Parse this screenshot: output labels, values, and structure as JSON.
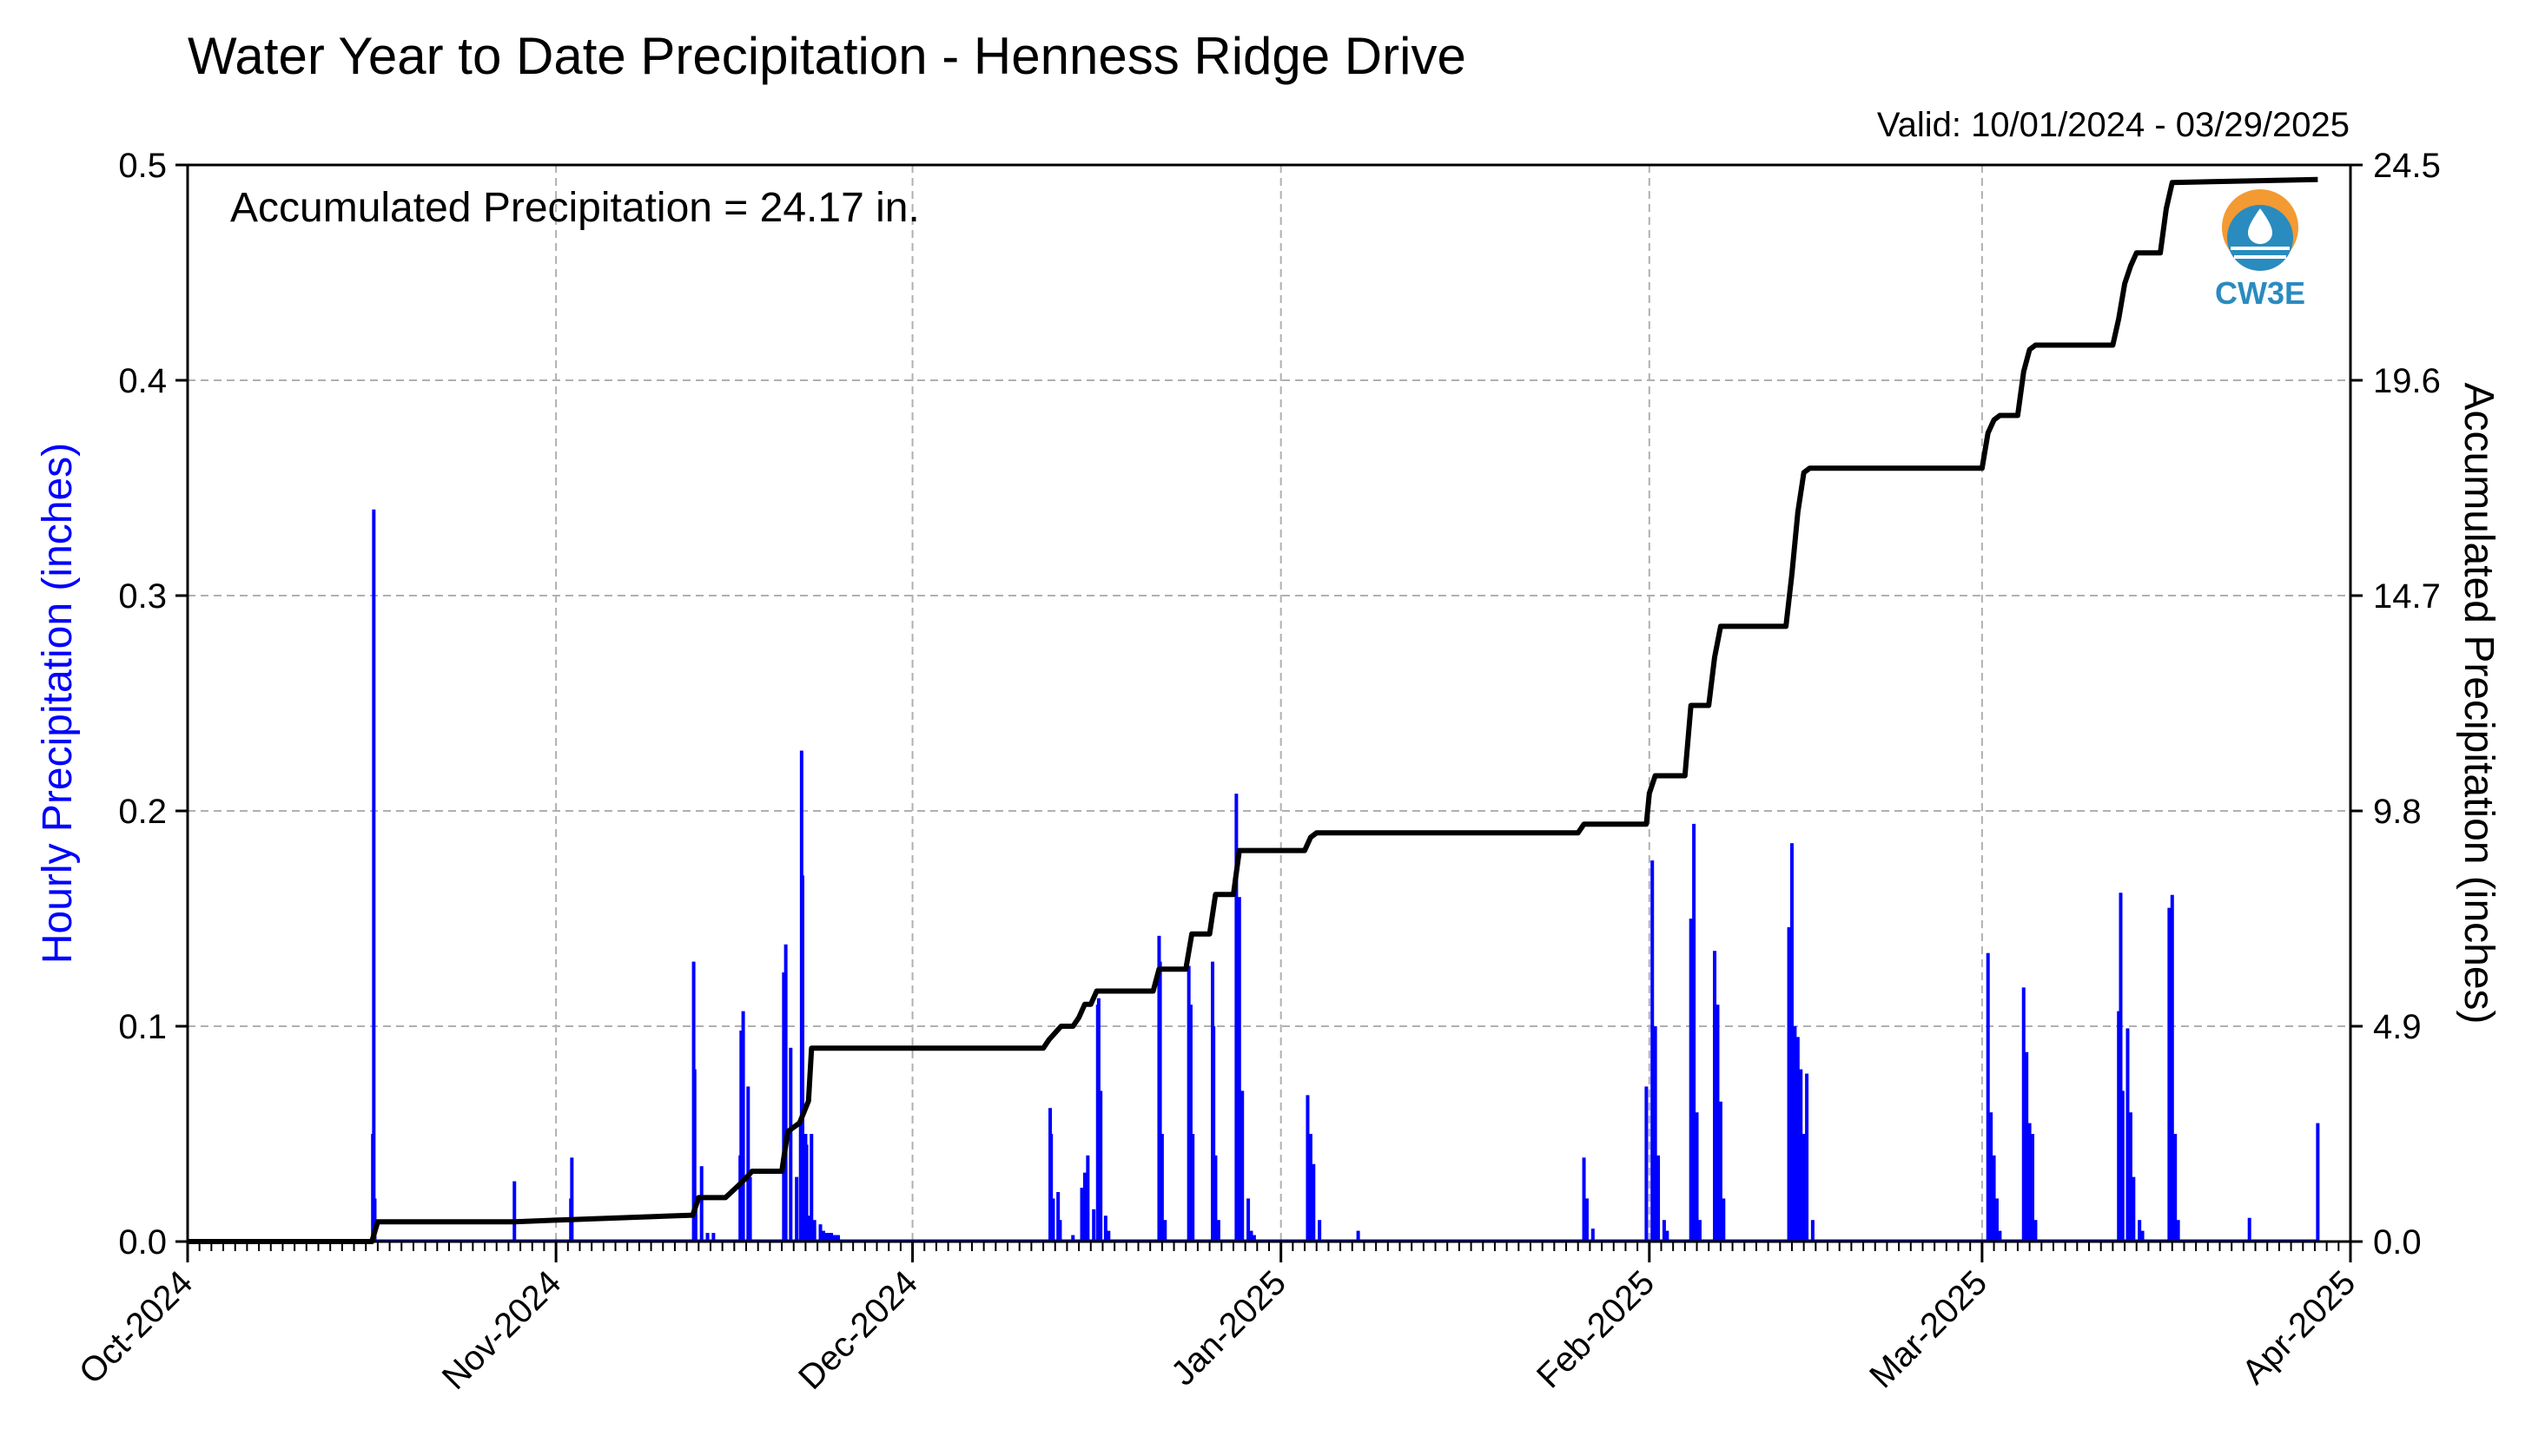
{
  "title": "Water Year to Date Precipitation - Henness Ridge Drive",
  "valid_text": "Valid: 10/01/2024 - 03/29/2025",
  "accumulated_text": "Accumulated Precipitation = 24.17 in.",
  "logo_text": "CW3E",
  "colors": {
    "hourly": "#0000ff",
    "accumulated": "#000000",
    "grid": "#b0b0b0",
    "logo_orange": "#f39a32",
    "logo_blue": "#2a8bbf"
  },
  "chart_data": {
    "type": "bar",
    "title": "Water Year to Date Precipitation - Henness Ridge Drive",
    "xlabel": "",
    "ylabel": "Hourly Precipitation (inches)",
    "y2label": "Accumulated Precipitation (inches)",
    "xlim": [
      "2024-10-01",
      "2025-04-01"
    ],
    "ylim": [
      0,
      0.5
    ],
    "y2lim": [
      0,
      24.5
    ],
    "grid": true,
    "x_tick_labels": [
      "Oct-2024",
      "Nov-2024",
      "Dec-2024",
      "Jan-2025",
      "Feb-2025",
      "Mar-2025",
      "Apr-2025"
    ],
    "x_tick_dates": [
      "2024-10-01",
      "2024-11-01",
      "2024-12-01",
      "2025-01-01",
      "2025-02-01",
      "2025-03-01",
      "2025-04-01"
    ],
    "y_tick_labels": [
      "0.0",
      "0.1",
      "0.2",
      "0.3",
      "0.4",
      "0.5"
    ],
    "y2_tick_labels": [
      "0.0",
      "4.9",
      "9.8",
      "14.7",
      "19.6",
      "24.5"
    ],
    "y2_tick_values": [
      0,
      4.9,
      9.8,
      14.7,
      19.6,
      24.5
    ],
    "series": [
      {
        "name": "Hourly Precipitation (inches)",
        "kind": "bar",
        "x": [
          "2024-10-16 14:00",
          "2024-10-16 16:00",
          "2024-10-16 18:00",
          "2024-10-28 12:00",
          "2024-11-02 06:00",
          "2024-11-02 08:00",
          "2024-11-12 14:00",
          "2024-11-12 16:00",
          "2024-11-12 18:00",
          "2024-11-13 06:00",
          "2024-11-13 18:00",
          "2024-11-14 06:00",
          "2024-11-16 12:00",
          "2024-11-16 14:00",
          "2024-11-16 18:00",
          "2024-11-17 04:00",
          "2024-11-17 08:00",
          "2024-11-20 04:00",
          "2024-11-20 08:00",
          "2024-11-20 18:00",
          "2024-11-21 06:00",
          "2024-11-21 14:00",
          "2024-11-21 16:00",
          "2024-11-21 18:00",
          "2024-11-22 00:00",
          "2024-11-22 02:00",
          "2024-11-22 06:00",
          "2024-11-22 12:00",
          "2024-11-22 18:00",
          "2024-11-23 06:00",
          "2024-11-23 12:00",
          "2024-11-23 18:00",
          "2024-11-24 00:00",
          "2024-11-24 04:00",
          "2024-11-24 06:00",
          "2024-11-24 10:00",
          "2024-11-24 14:00",
          "2024-11-24 18:00",
          "2024-12-12 14:00",
          "2024-12-12 16:00",
          "2024-12-12 20:00",
          "2024-12-13 06:00",
          "2024-12-13 10:00",
          "2024-12-14 12:00",
          "2024-12-15 06:00",
          "2024-12-15 12:00",
          "2024-12-15 18:00",
          "2024-12-16 06:00",
          "2024-12-16 14:00",
          "2024-12-16 16:00",
          "2024-12-16 20:00",
          "2024-12-17 06:00",
          "2024-12-17 12:00",
          "2024-12-21 18:00",
          "2024-12-21 20:00",
          "2024-12-22 00:00",
          "2024-12-22 06:00",
          "2024-12-24 06:00",
          "2024-12-24 10:00",
          "2024-12-24 14:00",
          "2024-12-26 06:00",
          "2024-12-26 08:00",
          "2024-12-26 12:00",
          "2024-12-26 18:00",
          "2024-12-28 06:00",
          "2024-12-28 12:00",
          "2024-12-28 18:00",
          "2024-12-29 06:00",
          "2024-12-29 12:00",
          "2024-12-29 18:00",
          "2025-01-03 06:00",
          "2025-01-03 12:00",
          "2025-01-03 18:00",
          "2025-01-04 06:00",
          "2025-01-07 12:00",
          "2025-01-26 12:00",
          "2025-01-26 18:00",
          "2025-01-27 06:00",
          "2025-01-31 18:00",
          "2025-02-01 06:00",
          "2025-02-01 12:00",
          "2025-02-01 18:00",
          "2025-02-02 06:00",
          "2025-02-02 12:00",
          "2025-02-04 12:00",
          "2025-02-04 18:00",
          "2025-02-05 00:00",
          "2025-02-05 06:00",
          "2025-02-06 12:00",
          "2025-02-06 18:00",
          "2025-02-07 00:00",
          "2025-02-07 06:00",
          "2025-02-12 18:00",
          "2025-02-13 00:00",
          "2025-02-13 06:00",
          "2025-02-13 12:00",
          "2025-02-13 18:00",
          "2025-02-14 00:00",
          "2025-02-14 06:00",
          "2025-02-14 18:00",
          "2025-03-01 12:00",
          "2025-03-01 18:00",
          "2025-03-02 00:00",
          "2025-03-02 06:00",
          "2025-03-02 12:00",
          "2025-03-04 12:00",
          "2025-03-04 18:00",
          "2025-03-05 00:00",
          "2025-03-05 06:00",
          "2025-03-05 12:00",
          "2025-03-12 12:00",
          "2025-03-12 16:00",
          "2025-03-12 20:00",
          "2025-03-13 06:00",
          "2025-03-13 12:00",
          "2025-03-13 18:00",
          "2025-03-14 06:00",
          "2025-03-14 12:00",
          "2025-03-16 18:00",
          "2025-03-17 00:00",
          "2025-03-17 06:00",
          "2025-03-17 12:00",
          "2025-03-23 12:00",
          "2025-03-29 06:00"
        ],
        "values": [
          0.05,
          0.34,
          0.02,
          0.028,
          0.02,
          0.039,
          0.13,
          0.08,
          0.02,
          0.035,
          0.004,
          0.004,
          0.04,
          0.098,
          0.107,
          0.072,
          0.03,
          0.125,
          0.138,
          0.09,
          0.03,
          0.055,
          0.228,
          0.17,
          0.05,
          0.045,
          0.012,
          0.05,
          0.01,
          0.008,
          0.005,
          0.004,
          0.004,
          0.004,
          0.003,
          0.003,
          0.003,
          0.003,
          0.062,
          0.05,
          0.02,
          0.023,
          0.01,
          0.003,
          0.025,
          0.032,
          0.04,
          0.015,
          0.11,
          0.113,
          0.07,
          0.012,
          0.005,
          0.142,
          0.13,
          0.05,
          0.01,
          0.128,
          0.11,
          0.05,
          0.13,
          0.1,
          0.04,
          0.01,
          0.208,
          0.16,
          0.07,
          0.02,
          0.005,
          0.003,
          0.068,
          0.05,
          0.036,
          0.01,
          0.005,
          0.039,
          0.02,
          0.006,
          0.072,
          0.177,
          0.1,
          0.04,
          0.01,
          0.005,
          0.15,
          0.194,
          0.06,
          0.01,
          0.135,
          0.11,
          0.065,
          0.02,
          0.146,
          0.185,
          0.1,
          0.095,
          0.08,
          0.05,
          0.078,
          0.01,
          0.134,
          0.06,
          0.04,
          0.02,
          0.005,
          0.118,
          0.088,
          0.055,
          0.05,
          0.01,
          0.107,
          0.162,
          0.07,
          0.099,
          0.06,
          0.03,
          0.01,
          0.005,
          0.155,
          0.161,
          0.05,
          0.01,
          0.011,
          0.055
        ]
      },
      {
        "name": "Accumulated Precipitation (inches)",
        "kind": "step-line",
        "x": [
          "2024-10-01",
          "2024-10-16 12:00",
          "2024-10-17 00:00",
          "2024-10-28 12:00",
          "2024-11-02 06:00",
          "2024-11-12 12:00",
          "2024-11-13 00:00",
          "2024-11-15 06:00",
          "2024-11-16 06:00",
          "2024-11-17 00:00",
          "2024-11-17 12:00",
          "2024-11-20 00:00",
          "2024-11-20 12:00",
          "2024-11-21 00:00",
          "2024-11-21 12:00",
          "2024-11-22 06:00",
          "2024-11-22 12:00",
          "2024-12-12 00:00",
          "2024-12-12 12:00",
          "2024-12-13 12:00",
          "2024-12-14 12:00",
          "2024-12-15 00:00",
          "2024-12-15 12:00",
          "2024-12-16 00:00",
          "2024-12-16 12:00",
          "2024-12-21 06:00",
          "2024-12-21 18:00",
          "2024-12-24 00:00",
          "2024-12-24 12:00",
          "2024-12-26 00:00",
          "2024-12-26 12:00",
          "2024-12-28 00:00",
          "2024-12-28 12:00",
          "2025-01-03 00:00",
          "2025-01-03 12:00",
          "2025-01-04 00:00",
          "2025-01-26 00:00",
          "2025-01-26 12:00",
          "2025-01-31 18:00",
          "2025-02-01 00:00",
          "2025-02-01 12:00",
          "2025-02-04 00:00",
          "2025-02-04 12:00",
          "2025-02-06 00:00",
          "2025-02-06 12:00",
          "2025-02-07 00:00",
          "2025-02-12 12:00",
          "2025-02-13 00:00",
          "2025-02-13 12:00",
          "2025-02-14 00:00",
          "2025-02-14 12:00",
          "2025-03-01 00:00",
          "2025-03-01 12:00",
          "2025-03-02 00:00",
          "2025-03-02 12:00",
          "2025-03-04 00:00",
          "2025-03-04 12:00",
          "2025-03-05 00:00",
          "2025-03-05 12:00",
          "2025-03-12 00:00",
          "2025-03-12 12:00",
          "2025-03-13 00:00",
          "2025-03-13 12:00",
          "2025-03-14 00:00",
          "2025-03-16 00:00",
          "2025-03-16 12:00",
          "2025-03-17 00:00",
          "2025-03-29 06:00"
        ],
        "values": [
          0.0,
          0.0,
          0.45,
          0.45,
          0.5,
          0.6,
          1.0,
          1.0,
          1.25,
          1.45,
          1.6,
          1.6,
          2.5,
          2.6,
          2.7,
          3.2,
          4.4,
          4.4,
          4.6,
          4.9,
          4.9,
          5.1,
          5.4,
          5.4,
          5.7,
          5.7,
          6.2,
          6.2,
          7.0,
          7.0,
          7.9,
          7.9,
          8.9,
          8.9,
          9.2,
          9.3,
          9.3,
          9.5,
          9.5,
          10.2,
          10.6,
          10.6,
          12.2,
          12.2,
          13.3,
          14.0,
          14.0,
          15.2,
          16.6,
          17.5,
          17.6,
          17.6,
          18.4,
          18.7,
          18.8,
          18.8,
          19.8,
          20.3,
          20.4,
          20.4,
          21.0,
          21.8,
          22.2,
          22.5,
          22.5,
          23.5,
          24.1,
          24.17
        ]
      }
    ]
  }
}
